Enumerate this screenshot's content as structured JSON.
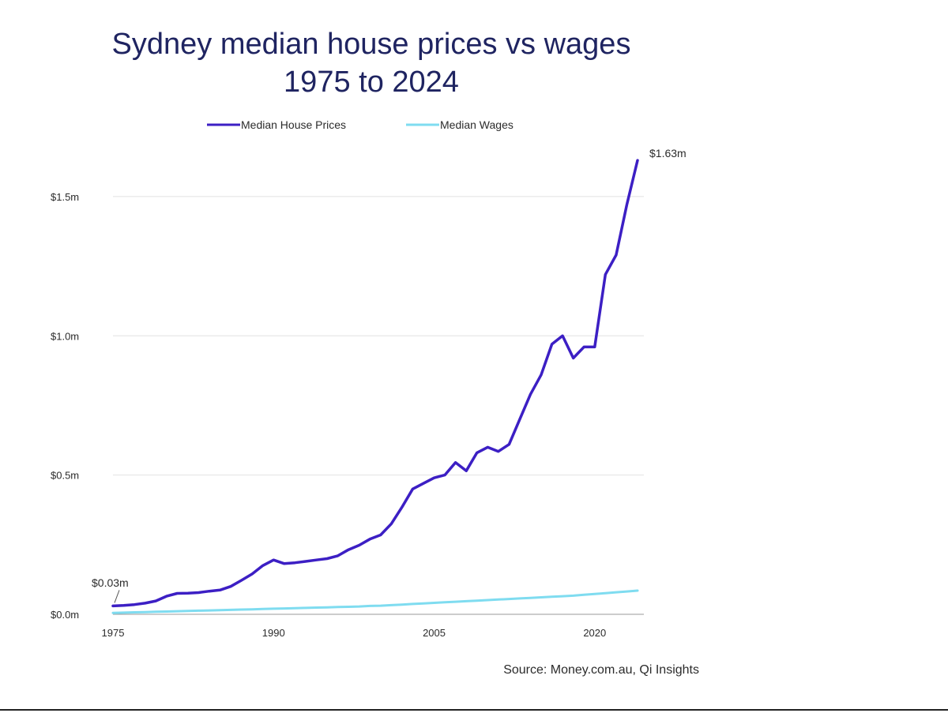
{
  "chart_data": {
    "type": "line",
    "title": "Sydney median house prices vs wages 1975 to 2024",
    "x": [
      1975,
      1976,
      1977,
      1978,
      1979,
      1980,
      1981,
      1982,
      1983,
      1984,
      1985,
      1986,
      1987,
      1988,
      1989,
      1990,
      1991,
      1992,
      1993,
      1994,
      1995,
      1996,
      1997,
      1998,
      1999,
      2000,
      2001,
      2002,
      2003,
      2004,
      2005,
      2006,
      2007,
      2008,
      2009,
      2010,
      2011,
      2012,
      2013,
      2014,
      2015,
      2016,
      2017,
      2018,
      2019,
      2020,
      2021,
      2022,
      2023,
      2024
    ],
    "series": [
      {
        "name": "Median House Prices",
        "color": "#3c1fc4",
        "values": [
          0.03,
          0.032,
          0.035,
          0.04,
          0.048,
          0.065,
          0.075,
          0.076,
          0.078,
          0.083,
          0.087,
          0.1,
          0.122,
          0.145,
          0.175,
          0.195,
          0.182,
          0.185,
          0.19,
          0.195,
          0.2,
          0.21,
          0.232,
          0.248,
          0.27,
          0.285,
          0.325,
          0.385,
          0.45,
          0.47,
          0.49,
          0.5,
          0.545,
          0.515,
          0.58,
          0.6,
          0.585,
          0.61,
          0.7,
          0.79,
          0.86,
          0.97,
          1.0,
          0.92,
          0.96,
          0.96,
          1.22,
          1.29,
          1.47,
          1.63
        ]
      },
      {
        "name": "Median Wages",
        "color": "#7fdcf0",
        "values": [
          0.005,
          0.006,
          0.007,
          0.008,
          0.009,
          0.01,
          0.011,
          0.012,
          0.013,
          0.014,
          0.015,
          0.016,
          0.017,
          0.018,
          0.019,
          0.02,
          0.021,
          0.022,
          0.023,
          0.024,
          0.025,
          0.026,
          0.027,
          0.028,
          0.03,
          0.031,
          0.033,
          0.035,
          0.037,
          0.039,
          0.041,
          0.043,
          0.045,
          0.047,
          0.049,
          0.051,
          0.053,
          0.055,
          0.057,
          0.059,
          0.061,
          0.063,
          0.065,
          0.067,
          0.07,
          0.073,
          0.076,
          0.079,
          0.082,
          0.085
        ]
      }
    ],
    "yticks": [
      {
        "value": 0,
        "label": "$0.0m"
      },
      {
        "value": 0.5,
        "label": "$0.5m"
      },
      {
        "value": 1.0,
        "label": "$1.0m"
      },
      {
        "value": 1.5,
        "label": "$1.5m"
      }
    ],
    "xticks": [
      {
        "value": 1975,
        "label": "1975"
      },
      {
        "value": 1990,
        "label": "1990"
      },
      {
        "value": 2005,
        "label": "2005"
      },
      {
        "value": 2020,
        "label": "2020"
      }
    ],
    "xlim": [
      1975,
      2024
    ],
    "ylim": [
      0,
      1.65
    ],
    "xlabel": "",
    "ylabel": "",
    "grid": true,
    "legend_position": "top",
    "annotations": [
      {
        "x": 1975,
        "y": 0.03,
        "label": "$0.03m"
      },
      {
        "x": 2024,
        "y": 1.63,
        "label": "$1.63m"
      }
    ],
    "source": "Source: Money.com.au, Qi Insights"
  }
}
